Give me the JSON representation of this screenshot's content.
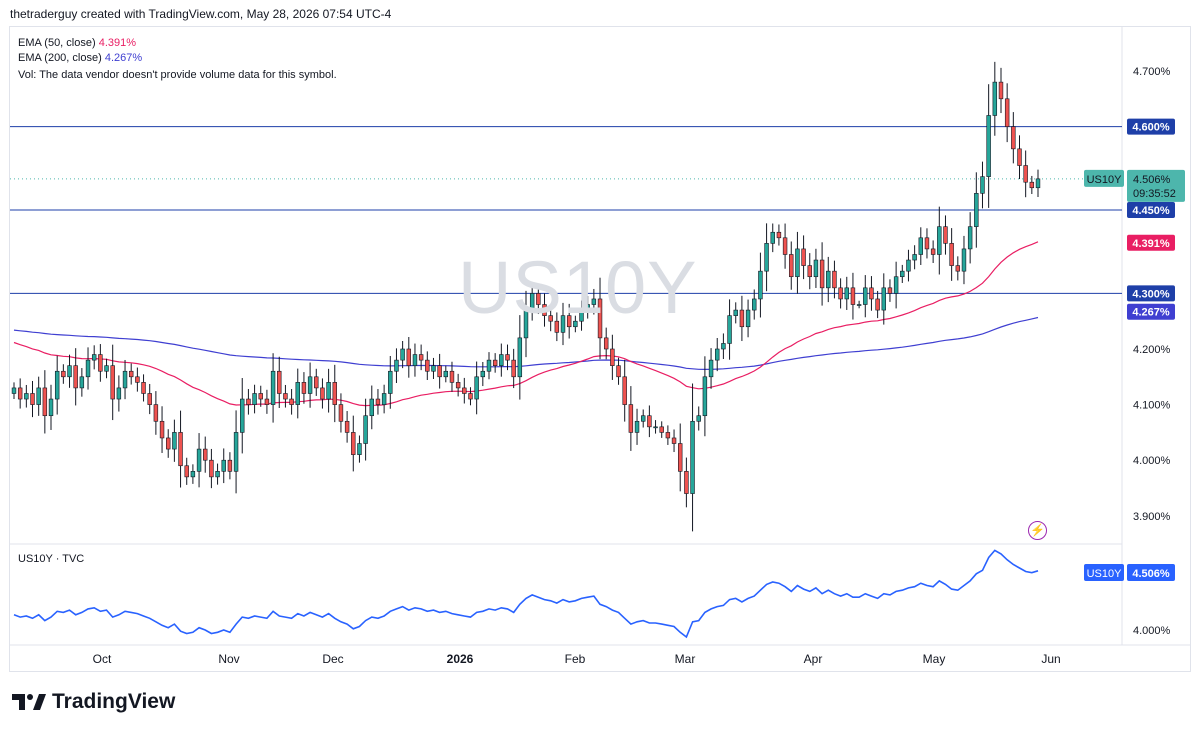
{
  "header": {
    "caption": "thetraderguy created with TradingView.com, May 28, 2026 07:54 UTC-4"
  },
  "legend": {
    "ema50_label": "EMA (50, close)",
    "ema50_value": "4.391%",
    "ema200_label": "EMA (200, close)",
    "ema200_value": "4.267%",
    "vol_text": "Vol: The data vendor doesn't provide volume data for this symbol."
  },
  "watermark": "US10Y",
  "colors": {
    "up": "#26a69a",
    "down": "#ef5350",
    "ema50": "#e91e63",
    "ema200": "#3f3fd1",
    "hline": "#1e3fa8",
    "line": "#2962ff",
    "last_bg": "#4db6ac"
  },
  "price_axis": {
    "ticks": [
      "4.700%",
      "4.200%",
      "4.100%",
      "4.000%",
      "3.900%"
    ],
    "ticks_values": [
      4.7,
      4.2,
      4.1,
      4.0,
      3.9
    ],
    "hlines": [
      {
        "value": 4.6,
        "label": "4.600%"
      },
      {
        "value": 4.45,
        "label": "4.450%"
      },
      {
        "value": 4.3,
        "label": "4.300%"
      }
    ],
    "ema50_tag": "4.391%",
    "ema200_tag": "4.267%",
    "last": {
      "symbol": "US10Y",
      "price": "4.506%",
      "countdown": "09:35:52",
      "value": 4.506
    }
  },
  "time_axis": [
    "Oct",
    "Nov",
    "Dec",
    "2026",
    "Feb",
    "Mar",
    "Apr",
    "May",
    "Jun"
  ],
  "sub_pane": {
    "label": "US10Y · TVC",
    "symbol": "US10Y",
    "price": "4.506%",
    "tick": "4.000%"
  },
  "brand": "TradingView",
  "chart_data": {
    "type": "candlestick",
    "symbol": "US10Y",
    "ylim": [
      3.87,
      4.74
    ],
    "close_series": [
      4.13,
      4.11,
      4.12,
      4.1,
      4.13,
      4.08,
      4.11,
      4.16,
      4.15,
      4.17,
      4.13,
      4.15,
      4.18,
      4.19,
      4.16,
      4.17,
      4.11,
      4.13,
      4.16,
      4.15,
      4.14,
      4.12,
      4.1,
      4.07,
      4.04,
      4.02,
      4.05,
      3.99,
      3.97,
      3.98,
      4.02,
      4.0,
      3.97,
      3.98,
      4.0,
      3.98,
      4.05,
      4.11,
      4.1,
      4.12,
      4.11,
      4.1,
      4.16,
      4.12,
      4.11,
      4.1,
      4.14,
      4.12,
      4.15,
      4.13,
      4.11,
      4.14,
      4.1,
      4.07,
      4.05,
      4.01,
      4.03,
      4.08,
      4.11,
      4.1,
      4.12,
      4.16,
      4.18,
      4.2,
      4.17,
      4.19,
      4.18,
      4.16,
      4.17,
      4.15,
      4.16,
      4.14,
      4.13,
      4.12,
      4.11,
      4.15,
      4.16,
      4.18,
      4.17,
      4.19,
      4.18,
      4.15,
      4.22,
      4.27,
      4.3,
      4.28,
      4.26,
      4.25,
      4.23,
      4.26,
      4.24,
      4.25,
      4.27,
      4.28,
      4.29,
      4.22,
      4.2,
      4.17,
      4.15,
      4.1,
      4.05,
      4.07,
      4.08,
      4.06,
      4.06,
      4.05,
      4.04,
      4.03,
      3.98,
      3.94,
      4.07,
      4.08,
      4.15,
      4.18,
      4.2,
      4.21,
      4.26,
      4.27,
      4.24,
      4.27,
      4.29,
      4.34,
      4.39,
      4.41,
      4.4,
      4.37,
      4.33,
      4.38,
      4.35,
      4.33,
      4.36,
      4.31,
      4.34,
      4.31,
      4.29,
      4.31,
      4.28,
      4.28,
      4.31,
      4.29,
      4.27,
      4.31,
      4.3,
      4.33,
      4.34,
      4.36,
      4.37,
      4.4,
      4.38,
      4.37,
      4.42,
      4.39,
      4.35,
      4.34,
      4.38,
      4.42,
      4.48,
      4.51,
      4.62,
      4.68,
      4.65,
      4.6,
      4.56,
      4.53,
      4.5,
      4.49,
      4.506
    ],
    "ema50_last": 4.391,
    "ema200_last": 4.267
  }
}
